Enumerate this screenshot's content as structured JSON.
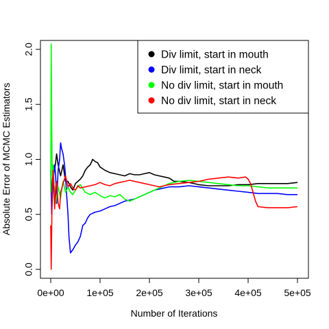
{
  "chart_data": {
    "type": "line",
    "title": "",
    "xlabel": "Number of Iterations",
    "ylabel": "Absolute Error of MCMC Estimators",
    "xlim": [
      0,
      500000
    ],
    "ylim": [
      0,
      2.0
    ],
    "x_ticks": [
      0,
      100000,
      200000,
      300000,
      400000,
      500000
    ],
    "x_tick_labels": [
      "0e+00",
      "1e+05",
      "2e+05",
      "3e+05",
      "4e+05",
      "5e+05"
    ],
    "y_ticks": [
      0.0,
      0.5,
      1.0,
      1.5,
      2.0
    ],
    "y_tick_labels": [
      "0.0",
      "0.5",
      "1.0",
      "1.5",
      "2.0"
    ],
    "grid": false,
    "legend_position": "top-right",
    "series": [
      {
        "name": "Div limit, start in mouth",
        "color": "#000000",
        "x": [
          0,
          2000,
          5000,
          8000,
          12000,
          15000,
          20000,
          25000,
          30000,
          35000,
          40000,
          45000,
          50000,
          55000,
          60000,
          65000,
          70000,
          75000,
          80000,
          85000,
          90000,
          95000,
          100000,
          110000,
          120000,
          130000,
          140000,
          150000,
          160000,
          170000,
          180000,
          190000,
          200000,
          210000,
          220000,
          230000,
          240000,
          250000,
          260000,
          280000,
          300000,
          320000,
          340000,
          360000,
          380000,
          400000,
          420000,
          440000,
          460000,
          480000,
          500000
        ],
        "y": [
          0.8,
          0.7,
          0.95,
          0.9,
          1.05,
          0.95,
          0.85,
          0.95,
          0.8,
          0.8,
          0.75,
          0.72,
          0.78,
          0.8,
          0.82,
          0.85,
          0.9,
          0.93,
          0.95,
          1.0,
          0.98,
          0.97,
          0.93,
          0.9,
          0.88,
          0.87,
          0.86,
          0.85,
          0.87,
          0.86,
          0.86,
          0.87,
          0.88,
          0.86,
          0.85,
          0.84,
          0.83,
          0.8,
          0.8,
          0.79,
          0.77,
          0.76,
          0.76,
          0.76,
          0.77,
          0.77,
          0.78,
          0.78,
          0.78,
          0.78,
          0.79
        ]
      },
      {
        "name": "Div limit, start in neck",
        "color": "#0000ff",
        "x": [
          0,
          2000,
          5000,
          8000,
          10000,
          12000,
          15000,
          18000,
          20000,
          22000,
          25000,
          28000,
          30000,
          32000,
          35000,
          37000,
          40000,
          45000,
          50000,
          55000,
          60000,
          65000,
          70000,
          75000,
          80000,
          90000,
          100000,
          110000,
          120000,
          130000,
          140000,
          150000,
          160000,
          170000,
          180000,
          190000,
          200000,
          210000,
          220000,
          230000,
          240000,
          260000,
          280000,
          300000,
          320000,
          340000,
          360000,
          380000,
          400000,
          420000,
          440000,
          460000,
          480000,
          500000
        ],
        "y": [
          0.9,
          0.5,
          0.8,
          0.95,
          0.85,
          0.6,
          0.9,
          1.0,
          1.15,
          1.1,
          1.05,
          0.95,
          0.85,
          0.7,
          0.5,
          0.3,
          0.15,
          0.18,
          0.22,
          0.25,
          0.3,
          0.4,
          0.42,
          0.47,
          0.5,
          0.52,
          0.53,
          0.55,
          0.57,
          0.58,
          0.6,
          0.62,
          0.63,
          0.64,
          0.66,
          0.68,
          0.7,
          0.72,
          0.73,
          0.74,
          0.75,
          0.75,
          0.76,
          0.75,
          0.74,
          0.73,
          0.72,
          0.71,
          0.7,
          0.69,
          0.69,
          0.69,
          0.68,
          0.68
        ]
      },
      {
        "name": "No div limit, start in mouth",
        "color": "#00ff00",
        "x": [
          0,
          1000,
          2000,
          3000,
          5000,
          7000,
          10000,
          15000,
          20000,
          25000,
          30000,
          35000,
          40000,
          45000,
          50000,
          55000,
          60000,
          70000,
          80000,
          90000,
          100000,
          110000,
          120000,
          130000,
          140000,
          150000,
          160000,
          170000,
          180000,
          190000,
          200000,
          210000,
          220000,
          230000,
          240000,
          250000,
          260000,
          280000,
          300000,
          320000,
          340000,
          360000,
          380000,
          400000,
          420000,
          440000,
          460000,
          480000,
          500000
        ],
        "y": [
          0.7,
          2.05,
          1.4,
          0.85,
          0.95,
          0.75,
          0.6,
          0.75,
          0.65,
          0.8,
          0.7,
          0.75,
          0.7,
          0.68,
          0.72,
          0.75,
          0.77,
          0.7,
          0.68,
          0.7,
          0.67,
          0.65,
          0.67,
          0.66,
          0.68,
          0.64,
          0.62,
          0.64,
          0.66,
          0.68,
          0.7,
          0.72,
          0.74,
          0.76,
          0.78,
          0.79,
          0.8,
          0.81,
          0.8,
          0.79,
          0.78,
          0.77,
          0.76,
          0.76,
          0.75,
          0.74,
          0.74,
          0.74,
          0.74
        ]
      },
      {
        "name": "No div limit, start in neck",
        "color": "#ff0000",
        "x": [
          0,
          1000,
          2000,
          3000,
          5000,
          8000,
          10000,
          12000,
          15000,
          18000,
          20000,
          25000,
          30000,
          35000,
          40000,
          45000,
          50000,
          55000,
          60000,
          70000,
          80000,
          90000,
          100000,
          110000,
          120000,
          130000,
          140000,
          150000,
          160000,
          170000,
          180000,
          190000,
          200000,
          210000,
          220000,
          230000,
          240000,
          260000,
          280000,
          300000,
          320000,
          340000,
          360000,
          380000,
          395000,
          400000,
          405000,
          410000,
          415000,
          420000,
          440000,
          460000,
          480000,
          500000
        ],
        "y": [
          0.4,
          0.0,
          0.35,
          0.75,
          0.9,
          0.55,
          0.75,
          0.8,
          0.6,
          0.55,
          0.7,
          0.78,
          0.85,
          0.75,
          0.78,
          0.74,
          0.72,
          0.76,
          0.74,
          0.75,
          0.76,
          0.77,
          0.79,
          0.77,
          0.76,
          0.78,
          0.79,
          0.8,
          0.81,
          0.8,
          0.79,
          0.78,
          0.77,
          0.76,
          0.75,
          0.76,
          0.77,
          0.78,
          0.79,
          0.8,
          0.82,
          0.83,
          0.84,
          0.83,
          0.84,
          0.82,
          0.78,
          0.7,
          0.62,
          0.57,
          0.56,
          0.56,
          0.56,
          0.57
        ]
      }
    ]
  }
}
